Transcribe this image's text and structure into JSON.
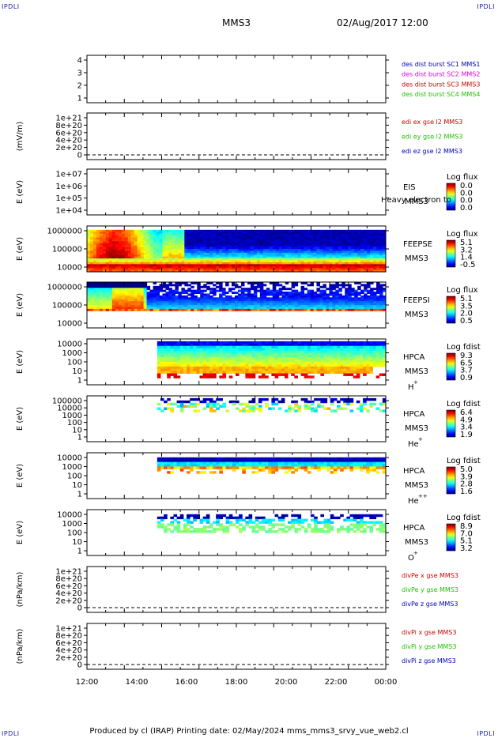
{
  "corners": {
    "tl": "IPDLI",
    "tr": "IPDLI",
    "bl": "IPDLI",
    "br": "IPDLI"
  },
  "header": {
    "spacecraft": "MMS3",
    "datetime": "02/Aug/2017 12:00"
  },
  "footer": {
    "text": "Produced by cl (IRAP)   Printing date: 02/May/2024   mms_mms3_srvy_vue_web2.cl"
  },
  "colors": {
    "dash": "#000000",
    "red": "#d40000",
    "green": "#20c000",
    "blue": "#0000c0",
    "magenta": "#e000e0"
  },
  "chart_data": [
    {
      "type": "line",
      "name": "des dist burst",
      "yticks": [
        "4",
        "3",
        "2",
        "1"
      ],
      "ylim": [
        0.5,
        4.5
      ],
      "legend": [
        {
          "text": "des dist burst SC1 MMS1",
          "color": "#0000c0"
        },
        {
          "text": "des dist burst SC2 MMS2",
          "color": "#e000e0"
        },
        {
          "text": "des dist burst SC3 MMS3",
          "color": "#d40000"
        },
        {
          "text": "des dist burst SC4 MMS4",
          "color": "#20c000"
        }
      ]
    },
    {
      "type": "line",
      "name": "edi",
      "ylabel": "(mV/m)",
      "yticks": [
        "1e+21",
        "8e+20",
        "6e+20",
        "4e+20",
        "2e+20",
        "0"
      ],
      "legend": [
        {
          "text": "edi ex gse l2 MMS3",
          "color": "#d40000"
        },
        {
          "text": "edi ey gse l2 MMS3",
          "color": "#20c000"
        },
        {
          "text": "edi ez gse l2 MMS3",
          "color": "#0000c0"
        }
      ]
    },
    {
      "type": "heatmap",
      "ylabel": "E (eV)",
      "yticks": [
        "1e+07",
        "1e+06",
        "1e+05",
        "1e+04"
      ],
      "ylim": [
        10000,
        10000000
      ],
      "instrument": "EIS",
      "sc": "MMS3",
      "overlay": "Heavy electron to",
      "cbar_title": "Log flux",
      "cbar_ticks": [
        "0.0",
        "0.0",
        "0.0",
        "0.0"
      ]
    },
    {
      "type": "heatmap",
      "ylabel": "E (eV)",
      "yticks": [
        "1000000",
        "100000",
        "10000"
      ],
      "ylim": [
        10000,
        1000000
      ],
      "instrument": "FEEPSE",
      "sc": "MMS3",
      "cbar_title": "Log flux",
      "cbar_ticks": [
        "5.1",
        "3.2",
        "1.4",
        "-0.5"
      ]
    },
    {
      "type": "heatmap",
      "ylabel": "E (eV)",
      "yticks": [
        "1000000",
        "100000",
        "10000"
      ],
      "ylim": [
        10000,
        1000000
      ],
      "instrument": "FEEPSI",
      "sc": "MMS3",
      "cbar_title": "Log flux",
      "cbar_ticks": [
        "5.1",
        "3.5",
        "2.0",
        "0.5"
      ]
    },
    {
      "type": "heatmap",
      "ylabel": "E (eV)",
      "yticks": [
        "10000",
        "1000",
        "100",
        "10",
        "1"
      ],
      "ylim": [
        1,
        30000
      ],
      "instrument": "HPCA",
      "sc": "MMS3",
      "species": "H",
      "charge": "+",
      "cbar_title": "Log fdist",
      "cbar_ticks": [
        "9.3",
        "6.5",
        "3.7",
        "0.9"
      ]
    },
    {
      "type": "heatmap",
      "ylabel": "E (eV)",
      "yticks": [
        "100000",
        "10000",
        "1000",
        "100",
        "10",
        "1"
      ],
      "ylim": [
        1,
        100000
      ],
      "instrument": "HPCA",
      "sc": "MMS3",
      "species": "He",
      "charge": "+",
      "cbar_title": "Log fdist",
      "cbar_ticks": [
        "6.4",
        "4.9",
        "3.4",
        "1.9"
      ]
    },
    {
      "type": "heatmap",
      "ylabel": "E (eV)",
      "yticks": [
        "10000",
        "1000",
        "100",
        "10",
        "1"
      ],
      "ylim": [
        1,
        30000
      ],
      "instrument": "HPCA",
      "sc": "MMS3",
      "species": "He",
      "charge": "++",
      "cbar_title": "Log fdist",
      "cbar_ticks": [
        "5.0",
        "3.9",
        "2.8",
        "1.6"
      ]
    },
    {
      "type": "heatmap",
      "ylabel": "E (eV)",
      "yticks": [
        "10000",
        "1000",
        "100",
        "10",
        "1"
      ],
      "ylim": [
        1,
        30000
      ],
      "instrument": "HPCA",
      "sc": "MMS3",
      "species": "O",
      "charge": "+",
      "cbar_title": "Log fdist",
      "cbar_ticks": [
        "8.9",
        "7.0",
        "5.1",
        "3.2"
      ]
    },
    {
      "type": "line",
      "name": "divPe",
      "ylabel": "(nPa/km)",
      "yticks": [
        "1e+21",
        "8e+20",
        "6e+20",
        "4e+20",
        "2e+20",
        "0"
      ],
      "legend": [
        {
          "text": "divPe x gse MMS3",
          "color": "#d40000"
        },
        {
          "text": "divPe y gse MMS3",
          "color": "#20c000"
        },
        {
          "text": "divPe z gse MMS3",
          "color": "#0000c0"
        }
      ]
    },
    {
      "type": "line",
      "name": "divPi",
      "ylabel": "(nPa/km)",
      "yticks": [
        "1e+21",
        "8e+20",
        "6e+20",
        "4e+20",
        "2e+20",
        "0"
      ],
      "legend": [
        {
          "text": "divPi x gse MMS3",
          "color": "#d40000"
        },
        {
          "text": "divPi y gse MMS3",
          "color": "#20c000"
        },
        {
          "text": "divPi z gse MMS3",
          "color": "#0000c0"
        }
      ]
    }
  ],
  "xaxis": {
    "ticks": [
      "12:00",
      "14:00",
      "16:00",
      "18:00",
      "20:00",
      "22:00",
      "00:00"
    ]
  }
}
